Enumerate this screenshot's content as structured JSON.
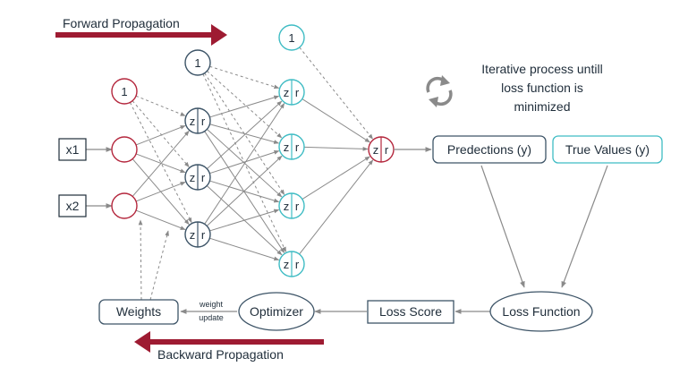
{
  "banner": {
    "forward_label": "Forward Propagation",
    "backward_label": "Backward Propagation"
  },
  "inputs": {
    "x1": "x1",
    "x2": "x2"
  },
  "bias_label": "1",
  "neuron": {
    "z": "z",
    "r": "r"
  },
  "process": {
    "iterative_text": [
      "Iterative process untill",
      "loss function is",
      "minimized"
    ]
  },
  "boxes": {
    "predictions": "Predections (y)",
    "true_values": "True Values (y)",
    "loss_function": "Loss Function",
    "loss_score": "Loss Score",
    "optimizer": "Optimizer",
    "weights": "Weights",
    "weight_update": [
      "weight",
      "update"
    ]
  },
  "colors": {
    "arrow_red": "#9e1b32",
    "input_red": "#b4273d",
    "hidden1": "#3d5467",
    "hidden2": "#3fbcc4",
    "output": "#b4273d",
    "edge": "#8a8a8a",
    "text": "#1f2d3a"
  }
}
